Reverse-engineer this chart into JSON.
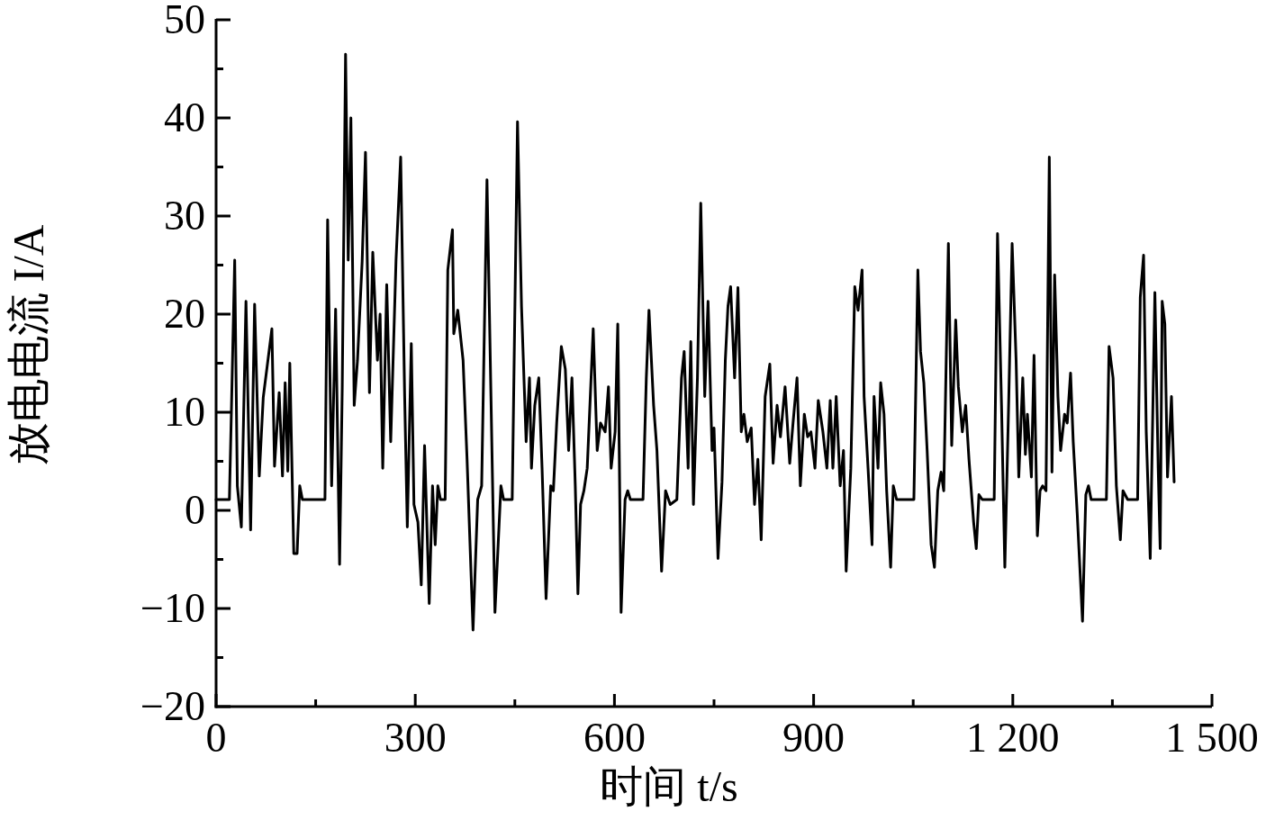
{
  "chart_data": {
    "type": "line",
    "xlabel": "时间 t/s",
    "ylabel": "放电电流 I/A",
    "xlim": [
      0,
      1500
    ],
    "ylim": [
      -20,
      50
    ],
    "xticks": [
      0,
      {
        "value": 150,
        "label": null
      },
      300,
      {
        "value": 450,
        "label": null
      },
      600,
      {
        "value": 750,
        "label": null
      },
      900,
      {
        "value": 1050,
        "label": null
      },
      {
        "value": 1200,
        "label": "1 200"
      },
      {
        "value": 1350,
        "label": null
      },
      {
        "value": 1500,
        "label": "1 500"
      }
    ],
    "yticks": [
      {
        "value": -20,
        "label": "−20"
      },
      {
        "value": -15,
        "label": null
      },
      {
        "value": -10,
        "label": "−10"
      },
      {
        "value": -5,
        "label": null
      },
      0,
      {
        "value": 5,
        "label": null
      },
      10,
      {
        "value": 15,
        "label": null
      },
      20,
      {
        "value": 25,
        "label": null
      },
      30,
      {
        "value": 35,
        "label": null
      },
      40,
      {
        "value": 45,
        "label": null
      },
      50
    ],
    "grid": false,
    "marker": "none",
    "line_style": "solid",
    "series": [
      {
        "color": "#000000",
        "x": [
          0,
          20,
          23,
          28,
          32,
          38,
          45,
          52,
          58,
          65,
          71,
          84,
          88,
          95,
          100,
          104,
          108,
          111,
          117,
          122,
          126,
          130,
          164,
          168,
          174,
          180,
          186,
          190,
          195,
          199,
          203,
          208,
          213,
          220,
          225,
          231,
          236,
          243,
          247,
          251,
          257,
          263,
          271,
          278,
          284,
          288,
          294,
          298,
          304,
          309,
          314,
          321,
          326,
          330,
          334,
          338,
          345,
          349,
          356,
          358,
          364,
          372,
          378,
          387,
          394,
          400,
          408,
          414,
          420,
          429,
          433,
          446,
          454,
          460,
          467,
          472,
          475,
          480,
          486,
          491,
          497,
          504,
          508,
          513,
          520,
          526,
          531,
          536,
          541,
          545,
          549,
          554,
          559,
          568,
          574,
          579,
          586,
          591,
          595,
          601,
          605,
          610,
          616,
          620,
          624,
          643,
          648,
          652,
          659,
          664,
          671,
          677,
          684,
          694,
          701,
          705,
          711,
          715,
          719,
          725,
          730,
          736,
          741,
          747,
          750,
          756,
          762,
          767,
          771,
          775,
          781,
          786,
          791,
          795,
          800,
          806,
          811,
          816,
          821,
          827,
          834,
          839,
          845,
          850,
          857,
          864,
          869,
          875,
          880,
          886,
          891,
          896,
          902,
          907,
          914,
          920,
          925,
          929,
          934,
          940,
          945,
          949,
          956,
          962,
          967,
          973,
          976,
          982,
          988,
          991,
          997,
          1001,
          1006,
          1010,
          1016,
          1020,
          1025,
          1051,
          1057,
          1061,
          1066,
          1071,
          1077,
          1082,
          1087,
          1092,
          1096,
          1103,
          1108,
          1114,
          1118,
          1124,
          1129,
          1134,
          1141,
          1145,
          1149,
          1154,
          1172,
          1177,
          1183,
          1188,
          1194,
          1199,
          1205,
          1209,
          1215,
          1219,
          1222,
          1228,
          1232,
          1237,
          1241,
          1245,
          1250,
          1255,
          1259,
          1263,
          1268,
          1272,
          1278,
          1282,
          1287,
          1291,
          1297,
          1305,
          1310,
          1314,
          1318,
          1341,
          1345,
          1351,
          1356,
          1362,
          1366,
          1373,
          1388,
          1392,
          1397,
          1401,
          1407,
          1414,
          1419,
          1422,
          1425,
          1429,
          1433,
          1439,
          1443
        ],
        "values": [
          1.1,
          1.1,
          10,
          25.5,
          2.5,
          -1.7,
          21.3,
          -2,
          21,
          3.5,
          11.5,
          18.5,
          4.5,
          12,
          3.5,
          13,
          4,
          15,
          -4.4,
          -4.4,
          2.5,
          1.1,
          1.1,
          29.6,
          2.5,
          20.5,
          -5.5,
          12.5,
          46.5,
          25.5,
          40,
          10.7,
          15.3,
          25.4,
          36.5,
          12,
          26.3,
          15.3,
          20,
          4.3,
          23,
          7,
          25.5,
          36,
          11.6,
          -1.7,
          17,
          0.6,
          -1.2,
          -7.6,
          6.6,
          -9.5,
          2.5,
          -3.5,
          2.5,
          1.1,
          1.1,
          24.5,
          28.6,
          18,
          20.4,
          15.3,
          5.2,
          -12.2,
          1.1,
          2.5,
          33.7,
          11.6,
          -10.4,
          2.5,
          1.1,
          1.1,
          39.6,
          20.8,
          7,
          13.5,
          4.3,
          10.7,
          13.5,
          4.3,
          -9,
          2.5,
          2,
          8.9,
          16.7,
          14.4,
          6.1,
          13.5,
          2.5,
          -8.5,
          0.6,
          2,
          4.3,
          18.5,
          6.1,
          8.9,
          8,
          12.6,
          4.3,
          8,
          19,
          -10.4,
          1.1,
          2,
          1.1,
          1.1,
          13.5,
          20.4,
          10.7,
          6.1,
          -6.2,
          2,
          0.6,
          1.1,
          13.5,
          16.2,
          4.3,
          17.2,
          0.6,
          13.5,
          31.3,
          11.6,
          21.3,
          6.1,
          8.4,
          -4.9,
          2.9,
          15.3,
          20.8,
          22.8,
          13.5,
          22.7,
          8,
          9.8,
          7,
          8.4,
          0.6,
          5.2,
          -3,
          11.6,
          14.9,
          4.8,
          10.7,
          7.5,
          12.6,
          4.8,
          8.9,
          13.5,
          2.5,
          9.8,
          7.5,
          8,
          4.3,
          11.2,
          8,
          4.3,
          11.2,
          4.3,
          11.6,
          2.5,
          6.1,
          -6.2,
          4.3,
          22.8,
          20.4,
          24.5,
          11.6,
          4.3,
          -3.5,
          11.6,
          4.3,
          13,
          9.8,
          2,
          -5.8,
          2.5,
          1.1,
          1.1,
          24.5,
          16.2,
          13,
          6.1,
          -3.5,
          -5.8,
          2,
          3.9,
          2,
          27.2,
          6.6,
          19.4,
          12.6,
          8,
          10.7,
          5.2,
          -1.2,
          -3.9,
          1.6,
          1.1,
          1.1,
          28.2,
          10.7,
          -5.8,
          11.6,
          27.2,
          15.3,
          3.4,
          13.5,
          5.7,
          9.8,
          3.4,
          15.8,
          -2.6,
          2,
          2.5,
          2,
          36,
          3.9,
          24,
          11.6,
          6.1,
          9.8,
          8.9,
          14,
          7,
          -0.3,
          -11.3,
          1.6,
          2.5,
          1.1,
          1.1,
          16.7,
          13.5,
          2.5,
          -3,
          2,
          1.1,
          1.1,
          21.7,
          26,
          8,
          -4.9,
          22.2,
          4.3,
          -3.9,
          21.3,
          19,
          3.4,
          11.6,
          2.9
        ]
      }
    ]
  }
}
